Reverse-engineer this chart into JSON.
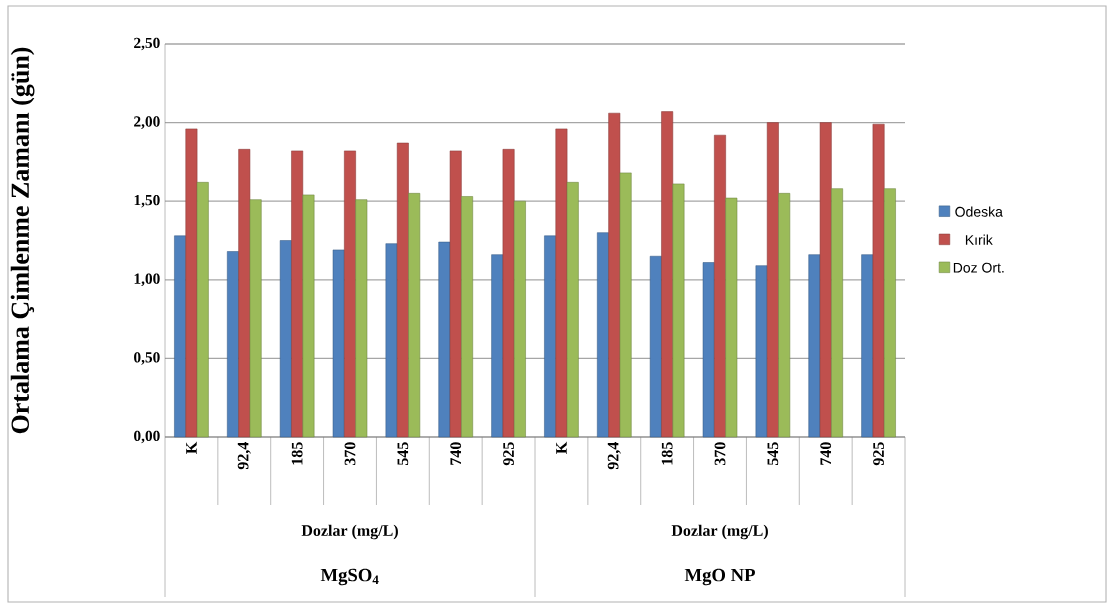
{
  "chart_data": {
    "type": "bar",
    "ylabel": "Ortalama Çimlenme Zamanı (gün)",
    "categories": [
      "K",
      "92,4",
      "185",
      "370",
      "545",
      "740",
      "925",
      "K",
      "92,4",
      "185",
      "370",
      "545",
      "740",
      "925"
    ],
    "series": [
      {
        "name": "Odeska",
        "color": "#4f81bd",
        "values": [
          1.28,
          1.18,
          1.25,
          1.19,
          1.23,
          1.24,
          1.16,
          1.28,
          1.3,
          1.15,
          1.11,
          1.09,
          1.16,
          1.16
        ]
      },
      {
        "name": "Kırik",
        "color": "#c0504d",
        "values": [
          1.96,
          1.83,
          1.82,
          1.82,
          1.87,
          1.82,
          1.83,
          1.96,
          2.06,
          2.07,
          1.92,
          2.0,
          2.0,
          1.99
        ]
      },
      {
        "name": "Doz Ort.",
        "color": "#9bbb59",
        "values": [
          1.62,
          1.51,
          1.54,
          1.51,
          1.55,
          1.53,
          1.5,
          1.62,
          1.68,
          1.61,
          1.52,
          1.55,
          1.58,
          1.58
        ]
      }
    ],
    "ylim": [
      0,
      2.5
    ],
    "yticks": [
      {
        "value": 0,
        "label": "0,00"
      },
      {
        "value": 0.5,
        "label": "0,50"
      },
      {
        "value": 1,
        "label": "1,00"
      },
      {
        "value": 1.5,
        "label": "1,50"
      },
      {
        "value": 2,
        "label": "2,00"
      },
      {
        "value": 2.5,
        "label": "2,50"
      }
    ],
    "grid": "y",
    "legend": "right",
    "annotations": [
      "Dozlar (mg/L)",
      "Dozlar (mg/L)",
      "MgSO$_{4}$",
      "MgO NP"
    ]
  }
}
